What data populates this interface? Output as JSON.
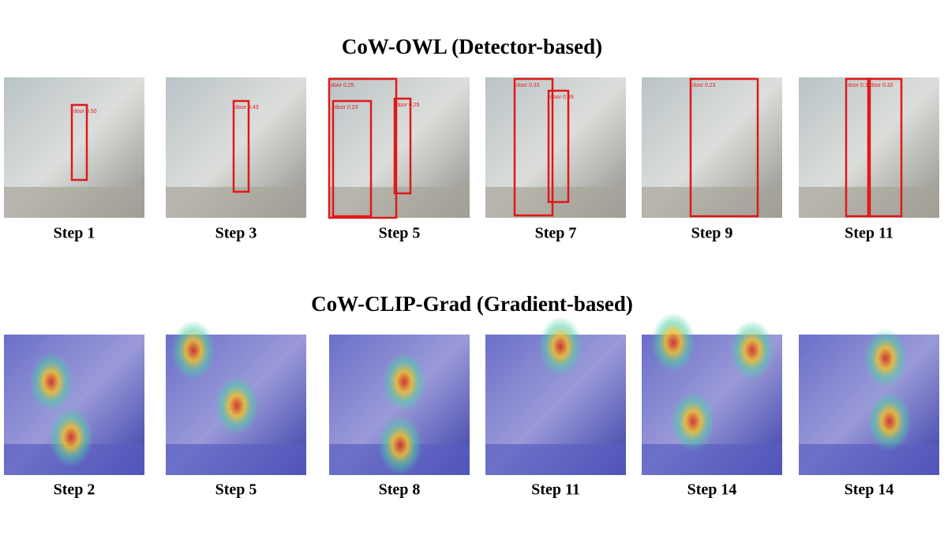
{
  "rows": [
    {
      "title": "CoW-OWL (Detector-based)",
      "style": "photo",
      "panels": [
        {
          "label": "Step 1",
          "boxes": [
            {
              "label": "door 0.50"
            }
          ]
        },
        {
          "label": "Step 3",
          "boxes": [
            {
              "label": "door 0.43"
            }
          ]
        },
        {
          "label": "Step 5",
          "boxes": [
            {
              "label": "door 0.25"
            },
            {
              "label": "door 0.23"
            },
            {
              "label": "door 0.25"
            }
          ]
        },
        {
          "label": "Step 7",
          "boxes": [
            {
              "label": "door 0.33"
            },
            {
              "label": "door 0.49"
            }
          ]
        },
        {
          "label": "Step 9",
          "boxes": [
            {
              "label": "door 0.23"
            }
          ]
        },
        {
          "label": "Step 11",
          "boxes": [
            {
              "label": "door 0.31"
            },
            {
              "label": "door 0.32"
            }
          ]
        }
      ]
    },
    {
      "title": "CoW-CLIP-Grad (Gradient-based)",
      "style": "heatmap",
      "panels": [
        {
          "label": "Step 2"
        },
        {
          "label": "Step 5"
        },
        {
          "label": "Step 8"
        },
        {
          "label": "Step 11"
        },
        {
          "label": "Step 14"
        },
        {
          "label": "Step 14"
        }
      ]
    }
  ]
}
